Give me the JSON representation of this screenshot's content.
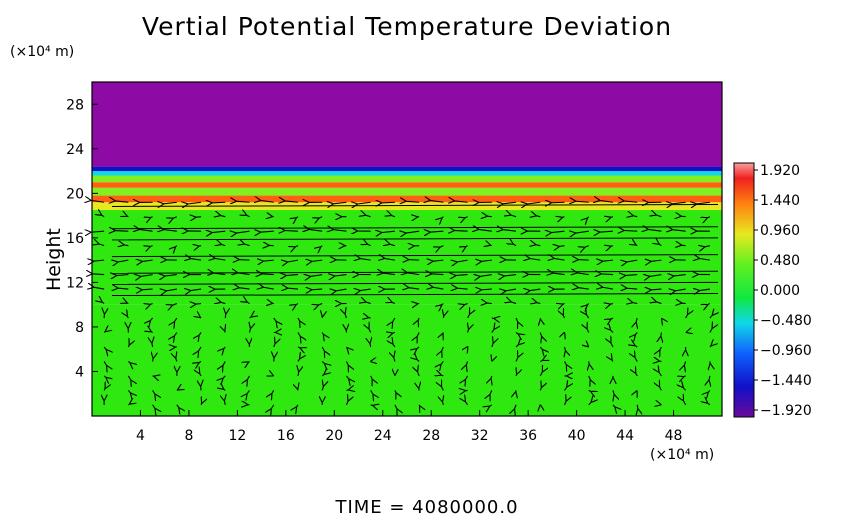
{
  "chart_data": {
    "type": "heatmap",
    "title": "Vertial Potential Temperature Deviation",
    "ylabel": "Height",
    "x_unit": "(×10⁴ m)",
    "y_unit": "(×10⁴ m)",
    "xlim": [
      0,
      52
    ],
    "ylim": [
      0,
      30
    ],
    "x_ticks": [
      4,
      8,
      12,
      16,
      20,
      24,
      28,
      32,
      36,
      40,
      44,
      48
    ],
    "y_ticks": [
      4,
      8,
      12,
      16,
      20,
      24,
      28
    ],
    "colorbar": {
      "ticks": [
        "1.920",
        "1.440",
        "0.960",
        "0.480",
        "0.000",
        "−0.480",
        "−0.960",
        "−1.440",
        "−1.920"
      ],
      "range": [
        -1.92,
        1.92
      ]
    },
    "bands": [
      {
        "y0": 0,
        "y1": 10,
        "value": 0.05
      },
      {
        "y0": 10,
        "y1": 18.5,
        "value": 0.15
      },
      {
        "y0": 18.5,
        "y1": 19.2,
        "value": 0.9
      },
      {
        "y0": 19.2,
        "y1": 19.8,
        "value": 1.6
      },
      {
        "y0": 19.8,
        "y1": 20.5,
        "value": 0.6
      },
      {
        "y0": 20.5,
        "y1": 21.0,
        "value": 1.3
      },
      {
        "y0": 21.0,
        "y1": 21.6,
        "value": 0.3
      },
      {
        "y0": 21.6,
        "y1": 22.0,
        "value": -0.6
      },
      {
        "y0": 22.0,
        "y1": 22.4,
        "value": -1.3
      },
      {
        "y0": 22.4,
        "y1": 30,
        "value": -1.92
      }
    ],
    "flow_rows": [
      {
        "y": 19.0,
        "u": -1.0
      },
      {
        "y": 17.0,
        "u": -1.0
      },
      {
        "y": 16.0,
        "u": -1.0
      },
      {
        "y": 14.5,
        "u": -0.8
      },
      {
        "y": 13.0,
        "u": -0.9
      },
      {
        "y": 12.0,
        "u": -0.8
      },
      {
        "y": 11.0,
        "u": -0.7
      }
    ]
  },
  "footer": {
    "time_label": "TIME = 4080000.0"
  },
  "colors": {
    "purple": "#8e0aa5",
    "green": "#2ee80f",
    "yellow": "#e8e820",
    "red": "#f01818",
    "cyan": "#10d8d8",
    "blue": "#1040ff"
  }
}
